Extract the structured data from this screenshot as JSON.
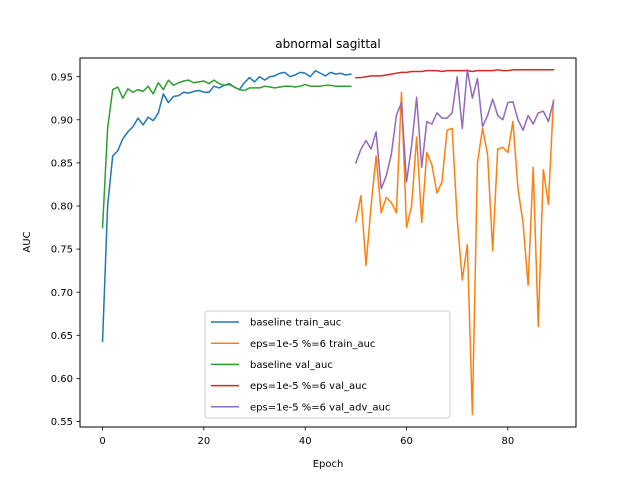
{
  "chart_data": {
    "type": "line",
    "title": "abnormal sagittal",
    "xlabel": "Epoch",
    "ylabel": "AUC",
    "xlim": [
      -4.45,
      93.45
    ],
    "ylim": [
      0.5436,
      0.9717
    ],
    "xticks": [
      0,
      20,
      40,
      60,
      80
    ],
    "yticks": [
      0.55,
      0.6,
      0.65,
      0.7,
      0.75,
      0.8,
      0.85,
      0.9,
      0.95
    ],
    "ytick_labels": [
      "0.55",
      "0.60",
      "0.65",
      "0.70",
      "0.75",
      "0.80",
      "0.85",
      "0.90",
      "0.95"
    ],
    "grid": false,
    "legend_position": "lower-center",
    "series": [
      {
        "name": "baseline train_auc",
        "color": "#1f77b4",
        "x_start": 0,
        "values": [
          0.643,
          0.8,
          0.858,
          0.864,
          0.878,
          0.886,
          0.892,
          0.902,
          0.894,
          0.903,
          0.899,
          0.908,
          0.93,
          0.92,
          0.927,
          0.928,
          0.932,
          0.931,
          0.933,
          0.934,
          0.932,
          0.932,
          0.939,
          0.937,
          0.94,
          0.941,
          0.938,
          0.935,
          0.943,
          0.949,
          0.944,
          0.95,
          0.946,
          0.95,
          0.951,
          0.954,
          0.955,
          0.95,
          0.952,
          0.955,
          0.954,
          0.95,
          0.957,
          0.954,
          0.951,
          0.955,
          0.953,
          0.954,
          0.952,
          0.953
        ]
      },
      {
        "name": "eps=1e-5 %=6 train_auc",
        "color": "#ff7f0e",
        "x_start": 50,
        "values": [
          0.782,
          0.812,
          0.731,
          0.8,
          0.858,
          0.792,
          0.81,
          0.804,
          0.792,
          0.932,
          0.775,
          0.8,
          0.88,
          0.781,
          0.862,
          0.848,
          0.815,
          0.828,
          0.888,
          0.89,
          0.785,
          0.714,
          0.755,
          0.558,
          0.85,
          0.89,
          0.86,
          0.748,
          0.866,
          0.868,
          0.862,
          0.898,
          0.82,
          0.78,
          0.708,
          0.845,
          0.66,
          0.842,
          0.802,
          0.923
        ]
      },
      {
        "name": "baseline val_auc",
        "color": "#2ca02c",
        "x_start": 0,
        "values": [
          0.775,
          0.89,
          0.935,
          0.938,
          0.925,
          0.936,
          0.932,
          0.935,
          0.933,
          0.939,
          0.93,
          0.943,
          0.935,
          0.946,
          0.94,
          0.943,
          0.945,
          0.946,
          0.943,
          0.944,
          0.945,
          0.942,
          0.946,
          0.942,
          0.94,
          0.942,
          0.938,
          0.935,
          0.934,
          0.937,
          0.937,
          0.937,
          0.939,
          0.938,
          0.937,
          0.938,
          0.939,
          0.939,
          0.938,
          0.939,
          0.941,
          0.939,
          0.939,
          0.939,
          0.94,
          0.94,
          0.939,
          0.939,
          0.939,
          0.939
        ]
      },
      {
        "name": "eps=1e-5 %=6 val_auc",
        "color": "#d62728",
        "x_start": 50,
        "values": [
          0.949,
          0.949,
          0.95,
          0.951,
          0.951,
          0.951,
          0.952,
          0.953,
          0.954,
          0.955,
          0.955,
          0.956,
          0.956,
          0.956,
          0.957,
          0.957,
          0.957,
          0.956,
          0.957,
          0.957,
          0.957,
          0.957,
          0.957,
          0.956,
          0.957,
          0.957,
          0.957,
          0.957,
          0.958,
          0.957,
          0.957,
          0.958,
          0.958,
          0.958,
          0.958,
          0.958,
          0.958,
          0.958,
          0.958,
          0.958
        ]
      },
      {
        "name": "eps=1e-5 %=6 val_adv_auc",
        "color": "#9467bd",
        "x_start": 50,
        "values": [
          0.85,
          0.866,
          0.876,
          0.866,
          0.886,
          0.82,
          0.835,
          0.86,
          0.905,
          0.92,
          0.828,
          0.87,
          0.926,
          0.845,
          0.898,
          0.895,
          0.908,
          0.902,
          0.902,
          0.908,
          0.95,
          0.89,
          0.958,
          0.925,
          0.948,
          0.892,
          0.905,
          0.924,
          0.905,
          0.9,
          0.92,
          0.921,
          0.9,
          0.888,
          0.905,
          0.895,
          0.908,
          0.91,
          0.898,
          0.921
        ]
      }
    ]
  }
}
